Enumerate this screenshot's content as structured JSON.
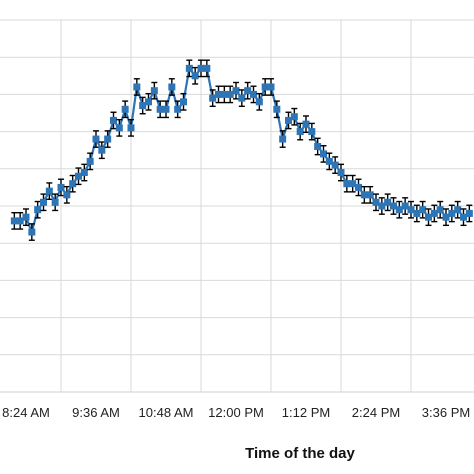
{
  "chart_data": {
    "type": "line",
    "xlabel": "Time of the day",
    "ylabel": "",
    "ylim": [
      0,
      10
    ],
    "grid": true,
    "tick_labels": [
      "8:24 AM",
      "9:36 AM",
      "10:48 AM",
      "12:00 PM",
      "1:12 PM",
      "2:24 PM",
      "3:36 PM"
    ],
    "x_tick_hours": [
      8.4,
      9.6,
      10.8,
      12.0,
      13.2,
      14.4,
      15.6
    ],
    "colors": {
      "line": "#2e75b6",
      "marker": "#2e75b6",
      "error_bar": "#000000",
      "grid": "#d9d9d9"
    },
    "series": [
      {
        "x": [
          8.2,
          8.3,
          8.4,
          8.5,
          8.6,
          8.7,
          8.8,
          8.9,
          9.0,
          9.1,
          9.2,
          9.3,
          9.4,
          9.5,
          9.6,
          9.7,
          9.8,
          9.9,
          10.0,
          10.1,
          10.2,
          10.3,
          10.4,
          10.5,
          10.6,
          10.7,
          10.8,
          10.9,
          11.0,
          11.1,
          11.2,
          11.3,
          11.4,
          11.5,
          11.6,
          11.7,
          11.8,
          11.9,
          12.0,
          12.1,
          12.2,
          12.3,
          12.4,
          12.5,
          12.6,
          12.7,
          12.8,
          12.9,
          13.0,
          13.1,
          13.2,
          13.3,
          13.4,
          13.5,
          13.6,
          13.7,
          13.8,
          13.9,
          14.0,
          14.1,
          14.2,
          14.3,
          14.4,
          14.5,
          14.6,
          14.7,
          14.8,
          14.9,
          15.0,
          15.1,
          15.2,
          15.3,
          15.4,
          15.5,
          15.6,
          15.7,
          15.8,
          15.9,
          16.0
        ],
        "y": [
          4.6,
          4.6,
          4.7,
          4.3,
          4.9,
          5.1,
          5.4,
          5.1,
          5.5,
          5.3,
          5.6,
          5.8,
          5.9,
          6.2,
          6.8,
          6.5,
          6.8,
          7.3,
          7.1,
          7.6,
          7.1,
          8.2,
          7.7,
          7.8,
          8.1,
          7.6,
          7.6,
          8.2,
          7.6,
          7.8,
          8.7,
          8.5,
          8.7,
          8.7,
          7.9,
          8.0,
          8.0,
          8.0,
          8.1,
          7.9,
          8.1,
          8.0,
          7.8,
          8.2,
          8.2,
          7.6,
          6.8,
          7.3,
          7.4,
          7.0,
          7.2,
          7.0,
          6.6,
          6.4,
          6.2,
          6.1,
          5.9,
          5.6,
          5.6,
          5.5,
          5.3,
          5.3,
          5.1,
          5.0,
          5.1,
          5.0,
          4.9,
          5.0,
          4.9,
          4.8,
          4.9,
          4.7,
          4.8,
          4.9,
          4.7,
          4.8,
          4.9,
          4.7,
          4.8
        ],
        "error": 0.22
      }
    ]
  }
}
